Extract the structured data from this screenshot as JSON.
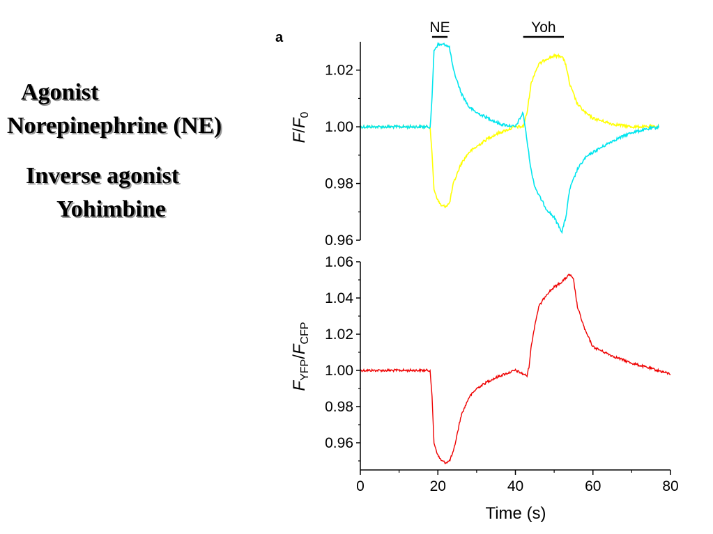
{
  "annotations": {
    "agonist_heading": "Agonist",
    "agonist_name": "Norepinephrine (NE)",
    "inverse_heading": "Inverse agonist",
    "inverse_name": "Yohimbine"
  },
  "chart_data": [
    {
      "type": "line",
      "panel": "a",
      "ylabel_italic": "F",
      "ylabel_mid": "/",
      "ylabel_italic2": "F",
      "ylabel_sub": "0",
      "ylim": [
        0.96,
        1.03
      ],
      "yticks": [
        "1.02",
        "1.00",
        "0.98",
        "0.96"
      ],
      "ytick_values": [
        1.02,
        1.0,
        0.98,
        0.96
      ],
      "xlim": [
        0,
        80
      ],
      "bars": [
        {
          "label": "NE",
          "start": 18.5,
          "end": 22.5
        },
        {
          "label": "Yoh",
          "start": 42,
          "end": 52.5
        }
      ],
      "series": [
        {
          "color": "#ffff00",
          "x": [
            0,
            18,
            18.5,
            19,
            20,
            21,
            22,
            23,
            24,
            26,
            28,
            30,
            33,
            36,
            40,
            42,
            43,
            44,
            45,
            46,
            48,
            50,
            52,
            53,
            54,
            56,
            58,
            60,
            65,
            70,
            77
          ],
          "y": [
            1.0,
            1.0,
            0.99,
            0.978,
            0.974,
            0.972,
            0.972,
            0.973,
            0.98,
            0.987,
            0.991,
            0.993,
            0.996,
            0.998,
            1.0,
            1.0,
            1.005,
            1.015,
            1.019,
            1.022,
            1.024,
            1.025,
            1.025,
            1.022,
            1.015,
            1.008,
            1.005,
            1.003,
            1.001,
            1.0,
            1.0
          ]
        },
        {
          "color": "#00e5ee",
          "x": [
            0,
            18,
            18.5,
            19,
            20,
            21,
            22,
            23,
            24,
            26,
            28,
            30,
            33,
            36,
            40,
            42,
            43,
            44,
            45,
            46,
            48,
            50,
            52,
            53,
            54,
            56,
            58,
            60,
            65,
            70,
            77
          ],
          "y": [
            1.0,
            1.0,
            1.01,
            1.027,
            1.029,
            1.029,
            1.029,
            1.028,
            1.02,
            1.012,
            1.007,
            1.005,
            1.003,
            1.001,
            1.0,
            1.005,
            0.995,
            0.985,
            0.979,
            0.976,
            0.971,
            0.968,
            0.963,
            0.968,
            0.978,
            0.985,
            0.989,
            0.991,
            0.995,
            0.998,
            1.0
          ]
        }
      ]
    },
    {
      "type": "line",
      "ylabel_italic": "F",
      "ylabel_sub": "YFP",
      "ylabel_mid": "/",
      "ylabel_italic2": "F",
      "ylabel_sub2": "CFP",
      "xlabel": "Time (s)",
      "ylim": [
        0.945,
        1.06
      ],
      "yticks": [
        "1.06",
        "1.04",
        "1.02",
        "1.00",
        "0.98",
        "0.96"
      ],
      "ytick_values": [
        1.06,
        1.04,
        1.02,
        1.0,
        0.98,
        0.96
      ],
      "xlim": [
        0,
        80
      ],
      "xticks": [
        "0",
        "20",
        "40",
        "60",
        "80"
      ],
      "xtick_values": [
        0,
        20,
        40,
        60,
        80
      ],
      "series": [
        {
          "color": "#ee0000",
          "x": [
            0,
            18,
            18.5,
            19,
            20,
            21,
            22,
            23,
            24,
            25,
            26,
            28,
            30,
            33,
            36,
            40,
            43,
            43.5,
            44,
            45,
            46,
            48,
            50,
            52,
            53,
            54,
            55,
            56,
            58,
            60,
            65,
            70,
            75,
            80
          ],
          "y": [
            1.0,
            1.0,
            0.985,
            0.96,
            0.953,
            0.95,
            0.949,
            0.95,
            0.955,
            0.965,
            0.975,
            0.985,
            0.99,
            0.994,
            0.997,
            1.0,
            0.997,
            1.002,
            1.012,
            1.025,
            1.035,
            1.042,
            1.046,
            1.049,
            1.051,
            1.053,
            1.05,
            1.035,
            1.022,
            1.013,
            1.008,
            1.004,
            1.001,
            0.998
          ]
        }
      ]
    }
  ]
}
